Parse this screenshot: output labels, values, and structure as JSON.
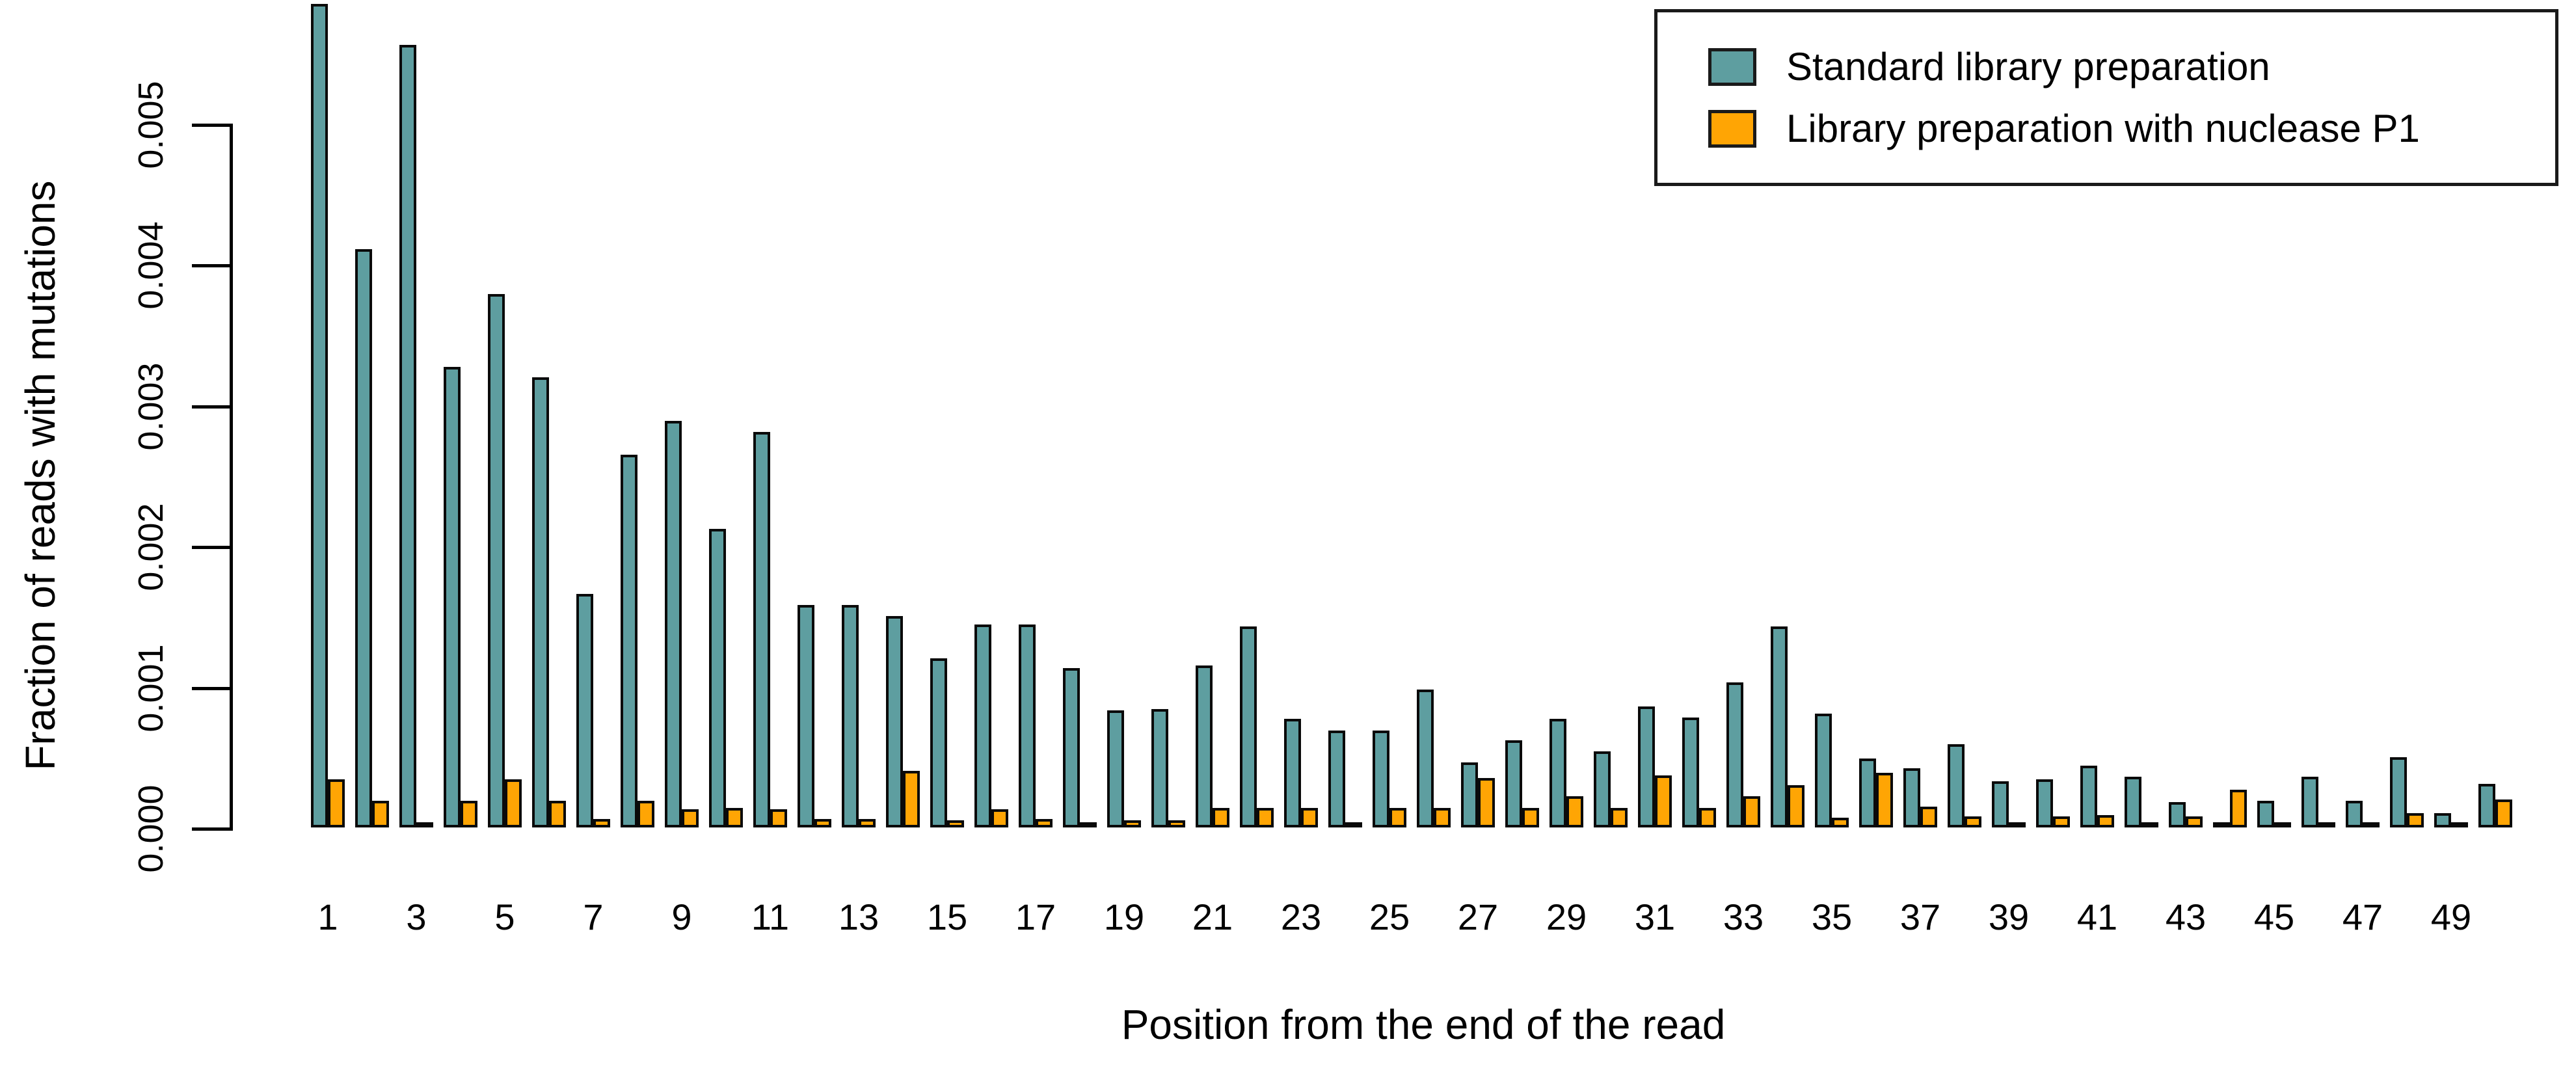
{
  "figure": {
    "y_axis": {
      "title": "Fraction of reads with mutations",
      "tick_labels": [
        "0.000",
        "0.001",
        "0.002",
        "0.003",
        "0.004",
        "0.005"
      ],
      "tick_values": [
        0.0,
        0.001,
        0.002,
        0.003,
        0.004,
        0.005
      ]
    },
    "x_axis": {
      "title": "Position from the end of the read",
      "tick_labels": [
        "1",
        "3",
        "5",
        "7",
        "9",
        "11",
        "13",
        "15",
        "17",
        "19",
        "21",
        "23",
        "25",
        "27",
        "29",
        "31",
        "33",
        "35",
        "37",
        "39",
        "41",
        "43",
        "45",
        "47",
        "49"
      ]
    },
    "legend": {
      "items": [
        {
          "label": "Standard library preparation",
          "color": "#5E9EA0"
        },
        {
          "label": "Library preparation with nuclease P1",
          "color": "#FFA504"
        }
      ]
    }
  },
  "chart_data": {
    "type": "bar",
    "title": "",
    "xlabel": "Position from the end of the read",
    "ylabel": "Fraction of reads with mutations",
    "ylim": [
      0,
      0.005
    ],
    "grid": false,
    "legend_position": "top-right",
    "x": [
      1,
      2,
      3,
      4,
      5,
      6,
      7,
      8,
      9,
      10,
      11,
      12,
      13,
      14,
      15,
      16,
      17,
      18,
      19,
      20,
      21,
      22,
      23,
      24,
      25,
      26,
      27,
      28,
      29,
      30,
      31,
      32,
      33,
      34,
      35,
      36,
      37,
      38,
      39,
      40,
      41,
      42,
      43,
      44,
      45,
      46,
      47,
      48,
      49,
      50
    ],
    "x_tick_step_note": "only odd positions are labeled on the axis",
    "series": [
      {
        "name": "Standard library preparation",
        "color": "#5E9EA0",
        "values": [
          0.00585,
          0.00411,
          0.00556,
          0.00327,
          0.00379,
          0.0032,
          0.00166,
          0.00265,
          0.00289,
          0.00212,
          0.00281,
          0.00158,
          0.00158,
          0.0015,
          0.0012,
          0.00144,
          0.00144,
          0.00113,
          0.00083,
          0.00084,
          0.00115,
          0.00143,
          0.00077,
          0.00069,
          0.00069,
          0.00098,
          0.00046,
          0.00062,
          0.00077,
          0.00054,
          0.00086,
          0.00078,
          0.00103,
          0.00143,
          0.00081,
          0.00049,
          0.00042,
          0.00059,
          0.00033,
          0.00034,
          0.00044,
          0.00036,
          0.00018,
          2e-05,
          0.00019,
          0.00036,
          0.00019,
          0.0005,
          0.0001,
          0.00031
        ]
      },
      {
        "name": "Library preparation with nuclease P1",
        "color": "#FFA504",
        "values": [
          0.00034,
          0.00019,
          1e-05,
          0.00019,
          0.00034,
          0.00019,
          6e-05,
          0.00019,
          0.00013,
          0.00014,
          0.00013,
          6e-05,
          6e-05,
          0.0004,
          5e-05,
          0.00013,
          6e-05,
          1e-05,
          5e-05,
          5e-05,
          0.00014,
          0.00014,
          0.00014,
          1e-05,
          0.00014,
          0.00014,
          0.00035,
          0.00014,
          0.00022,
          0.00014,
          0.00037,
          0.00014,
          0.00022,
          0.0003,
          7e-05,
          0.00039,
          0.00015,
          8e-05,
          2e-05,
          8e-05,
          9e-05,
          2e-05,
          8e-05,
          0.00027,
          2e-05,
          2e-05,
          2e-05,
          0.0001,
          1e-05,
          0.0002
        ]
      }
    ]
  },
  "layout": {
    "baseline_y": 1272,
    "y_of_max_tick": 190,
    "axis_x": 353,
    "tick_len": 58
  }
}
